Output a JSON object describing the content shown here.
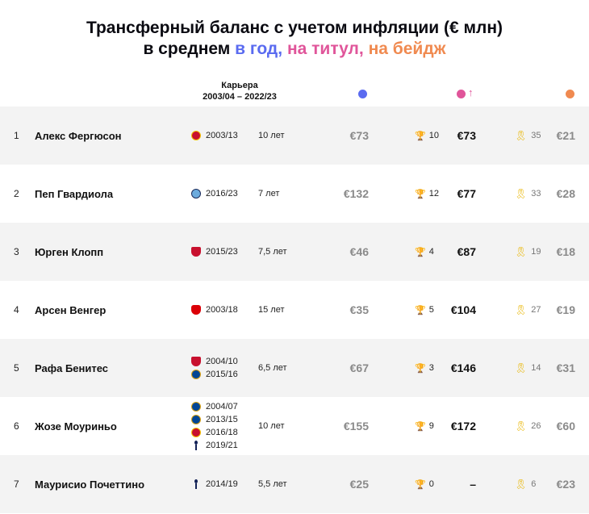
{
  "title": {
    "line1": "Трансферный баланс с учетом инфляции (€ млн)",
    "line2_prefix": "в среднем ",
    "part_year": "в год,",
    "part_title": "на титул,",
    "part_badge": "на бейдж"
  },
  "header": {
    "career_label": "Карьера",
    "career_range": "2003/04 – 2022/23",
    "arrow": "↑",
    "colors": {
      "year": "#5a6bf0",
      "title": "#e0559a",
      "badge": "#f08a50"
    }
  },
  "icons": {
    "trophy": "trophy-icon",
    "ribbon": "ribbon-icon"
  },
  "rows": [
    {
      "num": "1",
      "name": "Алекс Фергюсон",
      "clubs": [
        {
          "club": "mu",
          "years": "2003/13"
        }
      ],
      "tenure": "10 лет",
      "per_year": "€73",
      "titles": "10",
      "per_title": "€73",
      "badges": "35",
      "per_badge": "€21"
    },
    {
      "num": "2",
      "name": "Пеп Гвардиола",
      "clubs": [
        {
          "club": "mc",
          "years": "2016/23"
        }
      ],
      "tenure": "7 лет",
      "per_year": "€132",
      "titles": "12",
      "per_title": "€77",
      "badges": "33",
      "per_badge": "€28"
    },
    {
      "num": "3",
      "name": "Юрген Клопп",
      "clubs": [
        {
          "club": "lfc",
          "years": "2015/23"
        }
      ],
      "tenure": "7,5 лет",
      "per_year": "€46",
      "titles": "4",
      "per_title": "€87",
      "badges": "19",
      "per_badge": "€18"
    },
    {
      "num": "4",
      "name": "Арсен Венгер",
      "clubs": [
        {
          "club": "ars",
          "years": "2003/18"
        }
      ],
      "tenure": "15 лет",
      "per_year": "€35",
      "titles": "5",
      "per_title": "€104",
      "badges": "27",
      "per_badge": "€19"
    },
    {
      "num": "5",
      "name": "Рафа Бенитес",
      "clubs": [
        {
          "club": "lfc",
          "years": "2004/10"
        },
        {
          "club": "che",
          "years": "2015/16"
        }
      ],
      "tenure": "6,5 лет",
      "per_year": "€67",
      "titles": "3",
      "per_title": "€146",
      "badges": "14",
      "per_badge": "€31"
    },
    {
      "num": "6",
      "name": "Жозе Моуриньо",
      "clubs": [
        {
          "club": "che",
          "years": "2004/07"
        },
        {
          "club": "che",
          "years": "2013/15"
        },
        {
          "club": "mu",
          "years": "2016/18"
        },
        {
          "club": "tot",
          "years": "2019/21"
        }
      ],
      "tenure": "10 лет",
      "per_year": "€155",
      "titles": "9",
      "per_title": "€172",
      "badges": "26",
      "per_badge": "€60"
    },
    {
      "num": "7",
      "name": "Маурисио  Почеттино",
      "clubs": [
        {
          "club": "tot",
          "years": "2014/19"
        }
      ],
      "tenure": "5,5 лет",
      "per_year": "€25",
      "titles": "0",
      "per_title": "–",
      "badges": "6",
      "per_badge": "€23"
    }
  ]
}
